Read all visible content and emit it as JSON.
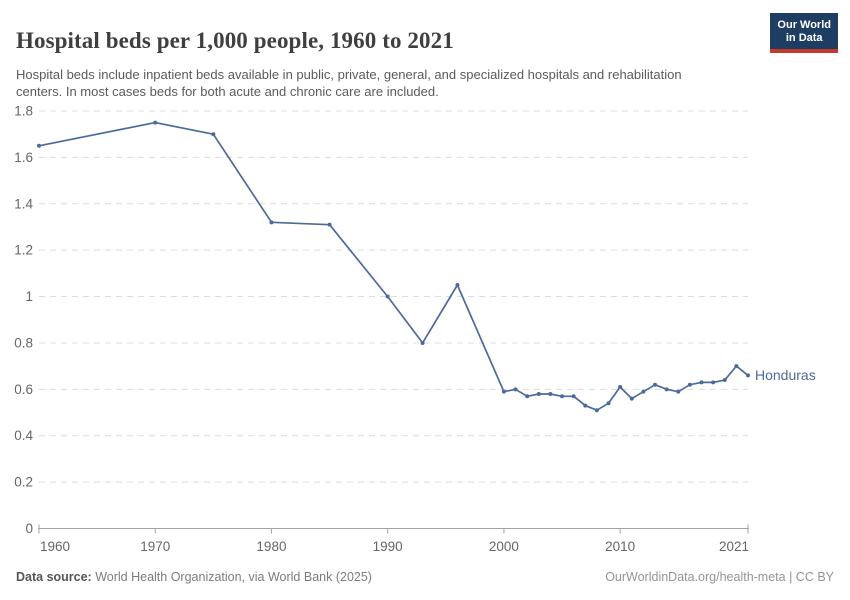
{
  "header": {
    "title": "Hospital beds per 1,000 people, 1960 to 2021",
    "subtitle": "Hospital beds include inpatient beds available in public, private, general, and specialized hospitals and rehabilitation centers. In most cases beds for both acute and chronic care are included.",
    "logo": {
      "line1": "Our World",
      "line2": "in Data"
    }
  },
  "footer": {
    "source_label": "Data source:",
    "source_text": " World Health Organization, via World Bank (2025)",
    "attribution": "OurWorldinData.org/health-meta | CC BY"
  },
  "colors": {
    "line": "#4C6A9C",
    "grid": "#dcdcdc",
    "axis": "#a3a3a3",
    "tick_label": "#666666",
    "logo_bg": "#1d3d63",
    "logo_red": "#c5392d"
  },
  "chart_data": {
    "type": "line",
    "title": "Hospital beds per 1,000 people, 1960 to 2021",
    "xlabel": "",
    "ylabel": "",
    "x_range": [
      1960,
      2021
    ],
    "y_range": [
      0,
      1.8
    ],
    "x_ticks": [
      1960,
      1970,
      1980,
      1990,
      2000,
      2010,
      2021
    ],
    "y_ticks": [
      0,
      0.2,
      0.4,
      0.6,
      0.8,
      1,
      1.2,
      1.4,
      1.6,
      1.8
    ],
    "grid": "horizontal-dashed",
    "legend_position": "end-of-line-label",
    "series": [
      {
        "name": "Honduras",
        "color": "#4C6A9C",
        "points": [
          [
            1960,
            1.65
          ],
          [
            1970,
            1.75
          ],
          [
            1975,
            1.7
          ],
          [
            1980,
            1.32
          ],
          [
            1985,
            1.31
          ],
          [
            1990,
            1.0
          ],
          [
            1993,
            0.8
          ],
          [
            1996,
            1.05
          ],
          [
            2000,
            0.59
          ],
          [
            2001,
            0.6
          ],
          [
            2002,
            0.57
          ],
          [
            2003,
            0.58
          ],
          [
            2004,
            0.58
          ],
          [
            2005,
            0.57
          ],
          [
            2006,
            0.57
          ],
          [
            2007,
            0.53
          ],
          [
            2008,
            0.51
          ],
          [
            2009,
            0.54
          ],
          [
            2010,
            0.61
          ],
          [
            2011,
            0.56
          ],
          [
            2012,
            0.59
          ],
          [
            2013,
            0.62
          ],
          [
            2014,
            0.6
          ],
          [
            2015,
            0.59
          ],
          [
            2016,
            0.62
          ],
          [
            2017,
            0.63
          ],
          [
            2018,
            0.63
          ],
          [
            2019,
            0.64
          ],
          [
            2020,
            0.7
          ],
          [
            2021,
            0.66
          ]
        ]
      }
    ]
  }
}
